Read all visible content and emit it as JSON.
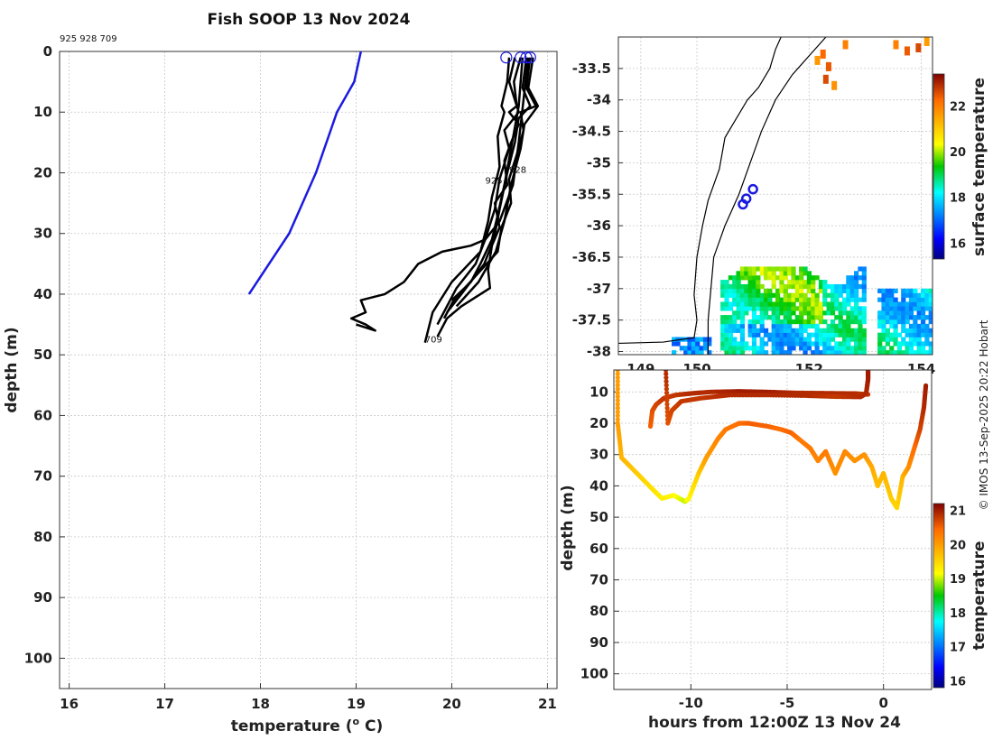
{
  "title": "Fish SOOP 13 Nov 2024",
  "credit": "© IMOS 13-Sep-2025 20:22 Hobart",
  "colors": {
    "profile": "#000000",
    "reference": "#1a1ae0",
    "marker": "#1a1ae0"
  },
  "chart_data": [
    {
      "type": "line",
      "id": "profile",
      "header_ids": "925 928 709",
      "xlabel": "temperature (",
      "xlabel_sup": "o",
      "xlabel_end": " C)",
      "ylabel": "depth (m)",
      "xlim": [
        15.9,
        21.1
      ],
      "ylim": [
        105,
        0
      ],
      "xticks": [
        "16",
        "17",
        "18",
        "19",
        "20",
        "21"
      ],
      "yticks": [
        "0",
        "10",
        "20",
        "30",
        "40",
        "50",
        "60",
        "70",
        "80",
        "90",
        "100"
      ],
      "grid": true,
      "series": [
        {
          "role": "climatology",
          "x": [
            19.05,
            18.98,
            18.8,
            18.58,
            18.3,
            17.88
          ],
          "y": [
            0,
            5,
            10,
            20,
            30,
            40
          ]
        }
      ],
      "profiles": [
        {
          "label": "925",
          "x": [
            20.72,
            20.65,
            20.68,
            20.6,
            20.7,
            20.62,
            20.55,
            20.58,
            20.45,
            20.5,
            20.42,
            20.38,
            20.4,
            20.1,
            19.95,
            19.85
          ],
          "y": [
            1,
            5,
            9,
            10,
            12,
            15,
            18,
            22,
            25,
            29,
            32,
            36,
            39,
            42,
            44,
            47
          ]
        },
        {
          "label": "928",
          "x": [
            20.82,
            20.78,
            20.88,
            20.72,
            20.75,
            20.68,
            20.6,
            20.62,
            20.52,
            20.48,
            20.25,
            20.02,
            19.92
          ],
          "y": [
            1,
            6,
            9,
            10,
            13,
            17,
            21,
            25,
            29,
            33,
            37,
            41,
            44
          ]
        },
        {
          "label": "709",
          "x": [
            20.6,
            20.58,
            20.52,
            20.55,
            20.48,
            20.5,
            20.42,
            20.38,
            20.3,
            20.0,
            19.8,
            19.72
          ],
          "y": [
            1,
            5,
            9,
            10,
            14,
            19,
            24,
            28,
            33,
            38,
            43,
            48
          ]
        },
        {
          "label": "",
          "x": [
            20.78,
            20.74,
            20.82,
            20.7,
            20.66,
            20.58,
            20.5,
            20.44,
            20.34,
            20.1,
            19.95
          ],
          "y": [
            1,
            6,
            9,
            11,
            15,
            20,
            26,
            31,
            35,
            40,
            43
          ]
        },
        {
          "label": "",
          "x": [
            20.85,
            20.8,
            20.9,
            20.76,
            20.72,
            20.62,
            20.55,
            20.46,
            20.28,
            20.05
          ],
          "y": [
            1,
            6,
            9,
            12,
            16,
            22,
            28,
            33,
            38,
            42
          ]
        },
        {
          "label": "",
          "x": [
            20.66,
            20.6,
            20.7,
            20.55,
            20.6,
            20.5,
            20.45,
            20.35,
            20.25,
            20.05,
            19.85
          ],
          "y": [
            1,
            5,
            10,
            13,
            16,
            21,
            26,
            31,
            35,
            39,
            45
          ]
        },
        {
          "label": "",
          "x": [
            20.8,
            20.75,
            20.7,
            20.64,
            20.5,
            20.35,
            20.2,
            19.9,
            19.65,
            19.5,
            19.3,
            19.05,
            19.1,
            18.95,
            19.1,
            19.2,
            19.0
          ],
          "y": [
            1,
            8,
            15,
            22,
            28,
            31,
            32,
            33,
            35,
            38,
            40,
            41,
            43,
            44,
            45,
            46,
            45
          ]
        },
        {
          "label": "",
          "x": [
            20.74,
            20.7,
            20.62,
            20.55,
            20.48,
            20.42,
            20.3,
            20.2,
            20.0
          ],
          "y": [
            1,
            9,
            16,
            22,
            27,
            31,
            35,
            38,
            41
          ]
        }
      ],
      "surface_markers_x": [
        20.57,
        20.72,
        20.78,
        20.82
      ],
      "profile_labels": [
        {
          "text": "928",
          "x": 20.6,
          "y": 20
        },
        {
          "text": "925",
          "x": 20.35,
          "y": 21.8
        },
        {
          "text": "709",
          "x": 19.72,
          "y": 48
        }
      ]
    },
    {
      "type": "heatmap",
      "id": "map",
      "colorbar_label": "surface temperature",
      "xlim": [
        148.6,
        154.2
      ],
      "ylim": [
        -38.05,
        -33.0
      ],
      "xticks": [
        "149",
        "150",
        "152",
        "154"
      ],
      "yticks": [
        "-33.5",
        "-34",
        "-34.5",
        "-35",
        "-35.5",
        "-36",
        "-36.5",
        "-37",
        "-37.5",
        "-38"
      ],
      "colorbar_ticks": [
        "16",
        "18",
        "20",
        "22"
      ],
      "colorbar_range": [
        15.3,
        23.4
      ],
      "profile_positions": [
        [
          151.0,
          -35.42
        ],
        [
          150.88,
          -35.57
        ],
        [
          150.82,
          -35.66
        ]
      ]
    },
    {
      "type": "scatter",
      "id": "timeseries",
      "xlabel": "hours from 12:00Z 13 Nov 24",
      "ylabel": "depth (m)",
      "colorbar_label": "temperature",
      "xlim": [
        -14,
        2.5
      ],
      "ylim": [
        105,
        3
      ],
      "xticks": [
        "-10",
        "-5",
        "0"
      ],
      "yticks": [
        "10",
        "20",
        "30",
        "40",
        "50",
        "60",
        "70",
        "80",
        "90",
        "100"
      ],
      "colorbar_ticks": [
        "16",
        "17",
        "18",
        "19",
        "20",
        "21"
      ],
      "colorbar_range": [
        15.8,
        21.2
      ],
      "tracks": [
        {
          "x": [
            -13.8,
            -13.8,
            -13.6,
            -12.8,
            -12.0,
            -11.5,
            -10.9,
            -10.6,
            -10.3,
            -10.1,
            -9.6,
            -9.2,
            -8.6,
            -8.2,
            -7.5,
            -7.0,
            -6.0,
            -5.3,
            -4.8,
            -4.2,
            -3.8,
            -3.4,
            -3.0,
            -2.5,
            -2.0,
            -1.5,
            -1.0,
            -0.6,
            -0.3,
            0.0,
            0.4,
            0.7,
            1.0,
            1.3,
            1.6,
            1.9,
            2.1,
            2.2
          ],
          "y": [
            3,
            20,
            31,
            36,
            41,
            44,
            43,
            44,
            45,
            44,
            36,
            31,
            25,
            22,
            20,
            20,
            21,
            22,
            23,
            26,
            28,
            32,
            29,
            36,
            29,
            32,
            30,
            34,
            40,
            36,
            44,
            47,
            37,
            34,
            28,
            22,
            15,
            8
          ],
          "t": [
            20.0,
            20.0,
            19.8,
            19.6,
            19.4,
            19.3,
            19.2,
            19.1,
            19.0,
            19.2,
            19.6,
            20.0,
            20.2,
            20.3,
            20.4,
            20.5,
            20.5,
            20.4,
            20.5,
            20.3,
            20.3,
            20.2,
            20.3,
            20.1,
            20.2,
            20.1,
            20.1,
            19.9,
            19.7,
            19.8,
            19.6,
            19.5,
            19.8,
            20.1,
            20.4,
            20.7,
            20.9,
            21.0
          ]
        },
        {
          "x": [
            -12.1,
            -12.0,
            -11.8,
            -11.4,
            -10.8,
            -10.0,
            -9.0,
            -7.5,
            -6.0,
            -4.5,
            -3.0,
            -1.5,
            -0.8
          ],
          "y": [
            21,
            16,
            14,
            12,
            11,
            10.5,
            10,
            9.8,
            10,
            10.3,
            10.4,
            10.5,
            10.8
          ],
          "t": [
            20.5,
            20.6,
            20.7,
            20.8,
            20.8,
            20.9,
            20.9,
            21.0,
            21.0,
            20.9,
            20.9,
            20.9,
            20.8
          ]
        },
        {
          "x": [
            -11.3,
            -11.2,
            -11.0,
            -10.5,
            -9.5,
            -8.0,
            -6.0,
            -4.0,
            -2.5,
            -1.2,
            -0.9,
            -0.8,
            -0.8
          ],
          "y": [
            3,
            20,
            16,
            13,
            12,
            11,
            11,
            11.2,
            11.5,
            11.6,
            10.5,
            6,
            3
          ],
          "t": [
            20.9,
            20.6,
            20.7,
            20.8,
            20.8,
            20.9,
            20.9,
            20.9,
            20.8,
            20.9,
            20.9,
            21.0,
            21.0
          ]
        }
      ]
    }
  ]
}
